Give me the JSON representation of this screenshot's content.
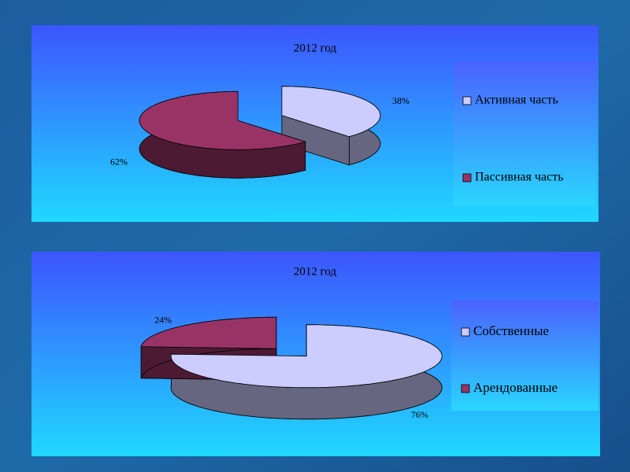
{
  "chart_data": [
    {
      "type": "pie",
      "title": "2012 год",
      "categories": [
        "Активная часть",
        "Пассивная часть"
      ],
      "values": [
        38,
        62
      ],
      "value_labels": [
        "38%",
        "62%"
      ],
      "colors": [
        "#ccccff",
        "#993366"
      ],
      "legend": "right"
    },
    {
      "type": "pie",
      "title": "2012 год",
      "categories": [
        "Собственные",
        "Арендованные"
      ],
      "values": [
        76,
        24
      ],
      "value_labels": [
        "76%",
        "24%"
      ],
      "colors": [
        "#ccccff",
        "#993366"
      ],
      "legend": "right"
    }
  ]
}
